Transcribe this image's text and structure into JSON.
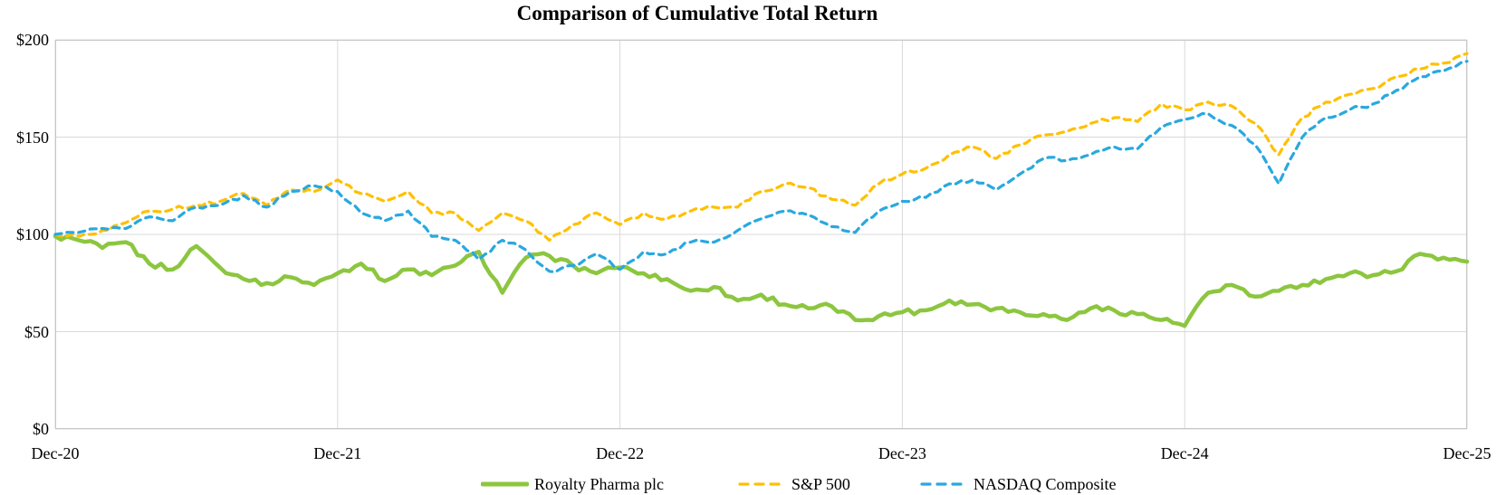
{
  "chart_data": {
    "type": "line",
    "title": "Comparison of Cumulative Total Return",
    "xlabel": "",
    "ylabel": "",
    "xlim": [
      0,
      60
    ],
    "ylim": [
      0,
      200
    ],
    "grid": true,
    "legend_position": "bottom",
    "x_unit": "months since Dec-2020",
    "x_tick_positions": [
      0,
      12,
      24,
      36,
      48,
      60
    ],
    "x_tick_labels": [
      "Dec-20",
      "Dec-21",
      "Dec-22",
      "Dec-23",
      "Dec-24",
      "Dec-25"
    ],
    "y_tick_values": [
      0,
      50,
      100,
      150,
      200
    ],
    "y_tick_labels": [
      "$0",
      "$50",
      "$100",
      "$150",
      "$200"
    ],
    "series": [
      {
        "name": "Royalty Pharma plc",
        "color": "#8CC63F",
        "style": "solid",
        "width": 4.5,
        "noise": 1.6,
        "values": [
          99,
          97,
          93,
          96,
          85,
          82,
          94,
          83,
          77,
          75,
          78,
          74,
          80,
          85,
          76,
          82,
          79,
          84,
          91,
          70,
          88,
          89,
          84,
          80,
          83,
          80,
          77,
          71,
          73,
          66,
          69,
          64,
          62,
          63,
          56,
          58,
          60,
          61,
          66,
          64,
          62,
          60,
          59,
          56,
          62,
          61,
          59,
          56,
          53,
          70,
          74,
          68,
          71,
          74,
          77,
          80,
          79,
          81,
          90,
          88,
          86
        ]
      },
      {
        "name": "S&P 500",
        "color": "#FFC000",
        "style": "dashed",
        "width": 3.2,
        "noise": 1.1,
        "values": [
          100,
          99,
          102,
          106,
          112,
          113,
          115,
          117,
          121,
          115,
          123,
          122,
          128,
          121,
          117,
          122,
          111,
          111,
          102,
          111,
          107,
          97,
          105,
          111,
          105,
          111,
          108,
          112,
          114,
          114,
          122,
          126,
          124,
          118,
          115,
          126,
          131,
          134,
          141,
          145,
          139,
          146,
          151,
          153,
          157,
          160,
          158,
          167,
          164,
          168,
          166,
          157,
          141,
          160,
          168,
          172,
          175,
          181,
          185,
          188,
          193
        ]
      },
      {
        "name": "NASDAQ Composite",
        "color": "#29A8E0",
        "style": "dashed",
        "width": 3.2,
        "noise": 1.1,
        "values": [
          100,
          101,
          103,
          103,
          109,
          107,
          114,
          115,
          120,
          114,
          122,
          125,
          122,
          111,
          107,
          112,
          99,
          97,
          87,
          97,
          92,
          81,
          84,
          90,
          82,
          91,
          90,
          96,
          96,
          102,
          108,
          112,
          110,
          104,
          101,
          112,
          117,
          119,
          126,
          128,
          123,
          131,
          139,
          138,
          141,
          145,
          144,
          155,
          159,
          162,
          156,
          146,
          126,
          150,
          160,
          164,
          167,
          174,
          181,
          184,
          189
        ]
      }
    ]
  },
  "colors": {
    "gridline": "#D9D9D9",
    "plot_border": "#C6C6C6",
    "text": "#000000",
    "background": "#FFFFFF"
  }
}
